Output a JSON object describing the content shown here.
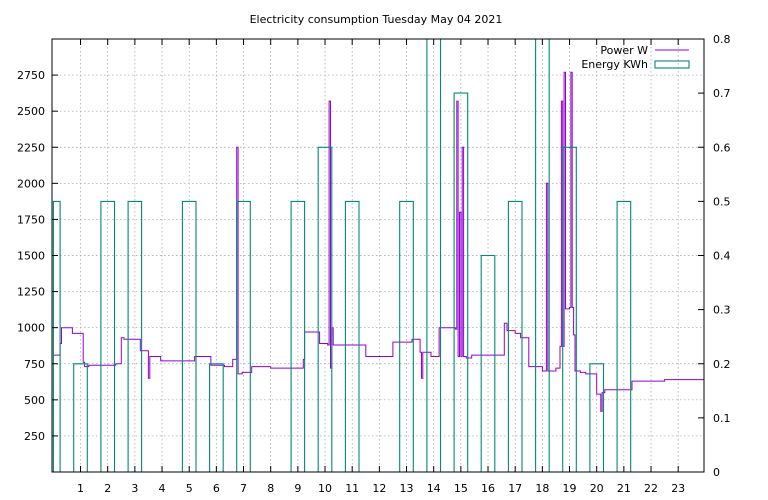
{
  "chart_data": {
    "type": "line",
    "title": "Electricity consumption Tuesday May 04 2021",
    "xlabel": "",
    "ylabel": "",
    "y2label": "",
    "xlim": [
      -0.05,
      23.95
    ],
    "ylim": [
      0,
      3000
    ],
    "y2lim": [
      0,
      0.8
    ],
    "x_ticks": [
      1,
      2,
      3,
      4,
      5,
      6,
      7,
      8,
      9,
      10,
      11,
      12,
      13,
      14,
      15,
      16,
      17,
      18,
      19,
      20,
      21,
      22,
      23
    ],
    "y_ticks": [
      250,
      500,
      750,
      1000,
      1250,
      1500,
      1750,
      2000,
      2250,
      2500,
      2750
    ],
    "y2_ticks": [
      "0",
      "0.1",
      "0.2",
      "0.3",
      "0.4",
      "0.5",
      "0.6",
      "0.7",
      "0.8"
    ],
    "grid": true,
    "legend_position": "top-right",
    "series": [
      {
        "name": "Power W",
        "axis": "left",
        "color": "#9400d3",
        "style": "steps",
        "x": [
          0,
          0.25,
          0.3,
          0.7,
          1.1,
          1.15,
          1.3,
          2.3,
          2.5,
          2.6,
          3.2,
          3.5,
          3.55,
          3.6,
          3.95,
          4.0,
          5.2,
          5.8,
          6.3,
          6.6,
          6.75,
          6.8,
          6.85,
          6.9,
          6.95,
          7.3,
          8.0,
          8.5,
          9.2,
          9.25,
          9.3,
          9.8,
          10.1,
          10.15,
          10.2,
          10.25,
          10.3,
          10.35,
          10.4,
          11.5,
          12.0,
          12.5,
          13.2,
          13.5,
          13.55,
          13.6,
          13.9,
          14.2,
          14.8,
          14.85,
          14.9,
          14.95,
          15.0,
          15.05,
          15.1,
          15.15,
          15.2,
          15.4,
          16.0,
          16.5,
          16.6,
          16.7,
          17.0,
          17.2,
          17.5,
          17.8,
          18.0,
          18.15,
          18.2,
          18.3,
          18.5,
          18.65,
          18.7,
          18.75,
          18.8,
          18.85,
          18.9,
          19.0,
          19.05,
          19.1,
          19.15,
          19.2,
          19.4,
          19.6,
          19.7,
          20.0,
          20.15,
          20.2,
          20.3,
          20.5,
          21.0,
          21.3,
          22.0,
          22.5,
          23.0,
          23.4,
          23.95
        ],
        "y": [
          810,
          890,
          1000,
          960,
          760,
          730,
          740,
          750,
          930,
          920,
          840,
          650,
          800,
          800,
          770,
          770,
          800,
          740,
          730,
          780,
          2250,
          680,
          680,
          680,
          690,
          730,
          720,
          720,
          780,
          970,
          970,
          890,
          880,
          2570,
          720,
          1000,
          880,
          880,
          880,
          800,
          800,
          900,
          920,
          830,
          650,
          830,
          800,
          1000,
          990,
          2570,
          800,
          1800,
          800,
          2250,
          800,
          800,
          790,
          810,
          810,
          810,
          1030,
          980,
          960,
          930,
          730,
          730,
          700,
          2000,
          700,
          700,
          720,
          870,
          2570,
          870,
          2770,
          1130,
          1130,
          1140,
          2770,
          1140,
          950,
          700,
          690,
          680,
          680,
          540,
          420,
          550,
          570,
          570,
          570,
          630,
          630,
          640,
          640,
          640,
          670
        ]
      },
      {
        "name": "Energy KWh",
        "axis": "right",
        "color": "#008b73",
        "style": "steps-columns",
        "x": [
          0,
          0.25,
          0.75,
          1.25,
          1.75,
          2.25,
          2.75,
          3.25,
          3.75,
          4.25,
          4.75,
          5.25,
          5.75,
          6.25,
          6.75,
          7.25,
          7.75,
          8.25,
          8.75,
          9.25,
          9.75,
          10.25,
          10.75,
          11.25,
          11.75,
          12.25,
          12.75,
          13.25,
          13.75,
          14.25,
          14.75,
          15.25,
          15.75,
          16.25,
          16.75,
          17.25,
          17.75,
          18.25,
          18.75,
          19.25,
          19.75,
          20.25,
          20.75,
          21.25,
          21.75,
          22.25,
          22.75,
          23.25,
          23.75
        ],
        "y": [
          0.5,
          0,
          0.2,
          0,
          0.5,
          0,
          0.5,
          0,
          0,
          0,
          0.5,
          0,
          0.2,
          0,
          0.5,
          0,
          0,
          0,
          0.5,
          0,
          0.6,
          0,
          0.5,
          0,
          0,
          0,
          0.5,
          0,
          0.8,
          0,
          0.7,
          0,
          0.4,
          0,
          0.5,
          0,
          0.8,
          0,
          0.6,
          0,
          0.2,
          0,
          0.5,
          0,
          0,
          0,
          0,
          0,
          0
        ]
      }
    ]
  }
}
